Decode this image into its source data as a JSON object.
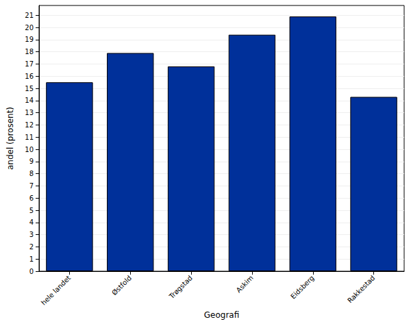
{
  "chart_data": {
    "type": "bar",
    "x_label": "Geografi",
    "y_label": "andel (prosent)",
    "categories": [
      "hele landet",
      "Østfold",
      "Trøgstad",
      "Askim",
      "Eidsberg",
      "Rakkestad"
    ],
    "values": [
      15.5,
      17.9,
      16.8,
      19.4,
      20.9,
      14.3
    ],
    "color": "#00309a",
    "ylim": [
      0,
      21.8
    ],
    "yticks": [
      0,
      1,
      2,
      3,
      4,
      5,
      6,
      7,
      8,
      9,
      10,
      11,
      12,
      13,
      14,
      15,
      16,
      17,
      18,
      19,
      20,
      21
    ],
    "grid": true
  }
}
